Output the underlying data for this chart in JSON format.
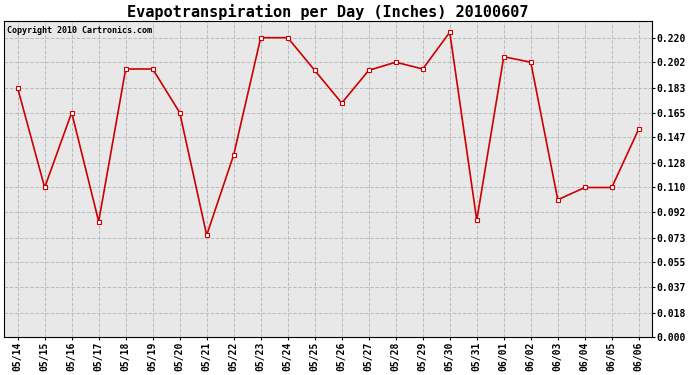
{
  "title": "Evapotranspiration per Day (Inches) 20100607",
  "copyright_text": "Copyright 2010 Cartronics.com",
  "x_labels": [
    "05/14",
    "05/15",
    "05/16",
    "05/17",
    "05/18",
    "05/19",
    "05/20",
    "05/21",
    "05/22",
    "05/23",
    "05/24",
    "05/25",
    "05/26",
    "05/27",
    "05/28",
    "05/29",
    "05/30",
    "05/31",
    "06/01",
    "06/02",
    "06/03",
    "06/04",
    "06/05",
    "06/06"
  ],
  "y_values": [
    0.183,
    0.11,
    0.165,
    0.085,
    0.197,
    0.197,
    0.165,
    0.075,
    0.134,
    0.22,
    0.22,
    0.196,
    0.172,
    0.196,
    0.202,
    0.197,
    0.224,
    0.086,
    0.206,
    0.202,
    0.101,
    0.11,
    0.11,
    0.153
  ],
  "y_ticks": [
    0.0,
    0.018,
    0.037,
    0.055,
    0.073,
    0.092,
    0.11,
    0.128,
    0.147,
    0.165,
    0.183,
    0.202,
    0.22
  ],
  "line_color": "#cc0000",
  "marker": "s",
  "marker_size": 3,
  "bg_color": "#ffffff",
  "plot_bg_color": "#e8e8e8",
  "grid_color": "#bbbbbb",
  "title_fontsize": 11,
  "tick_fontsize": 7,
  "copyright_fontsize": 6,
  "ylim": [
    0.0,
    0.232
  ]
}
